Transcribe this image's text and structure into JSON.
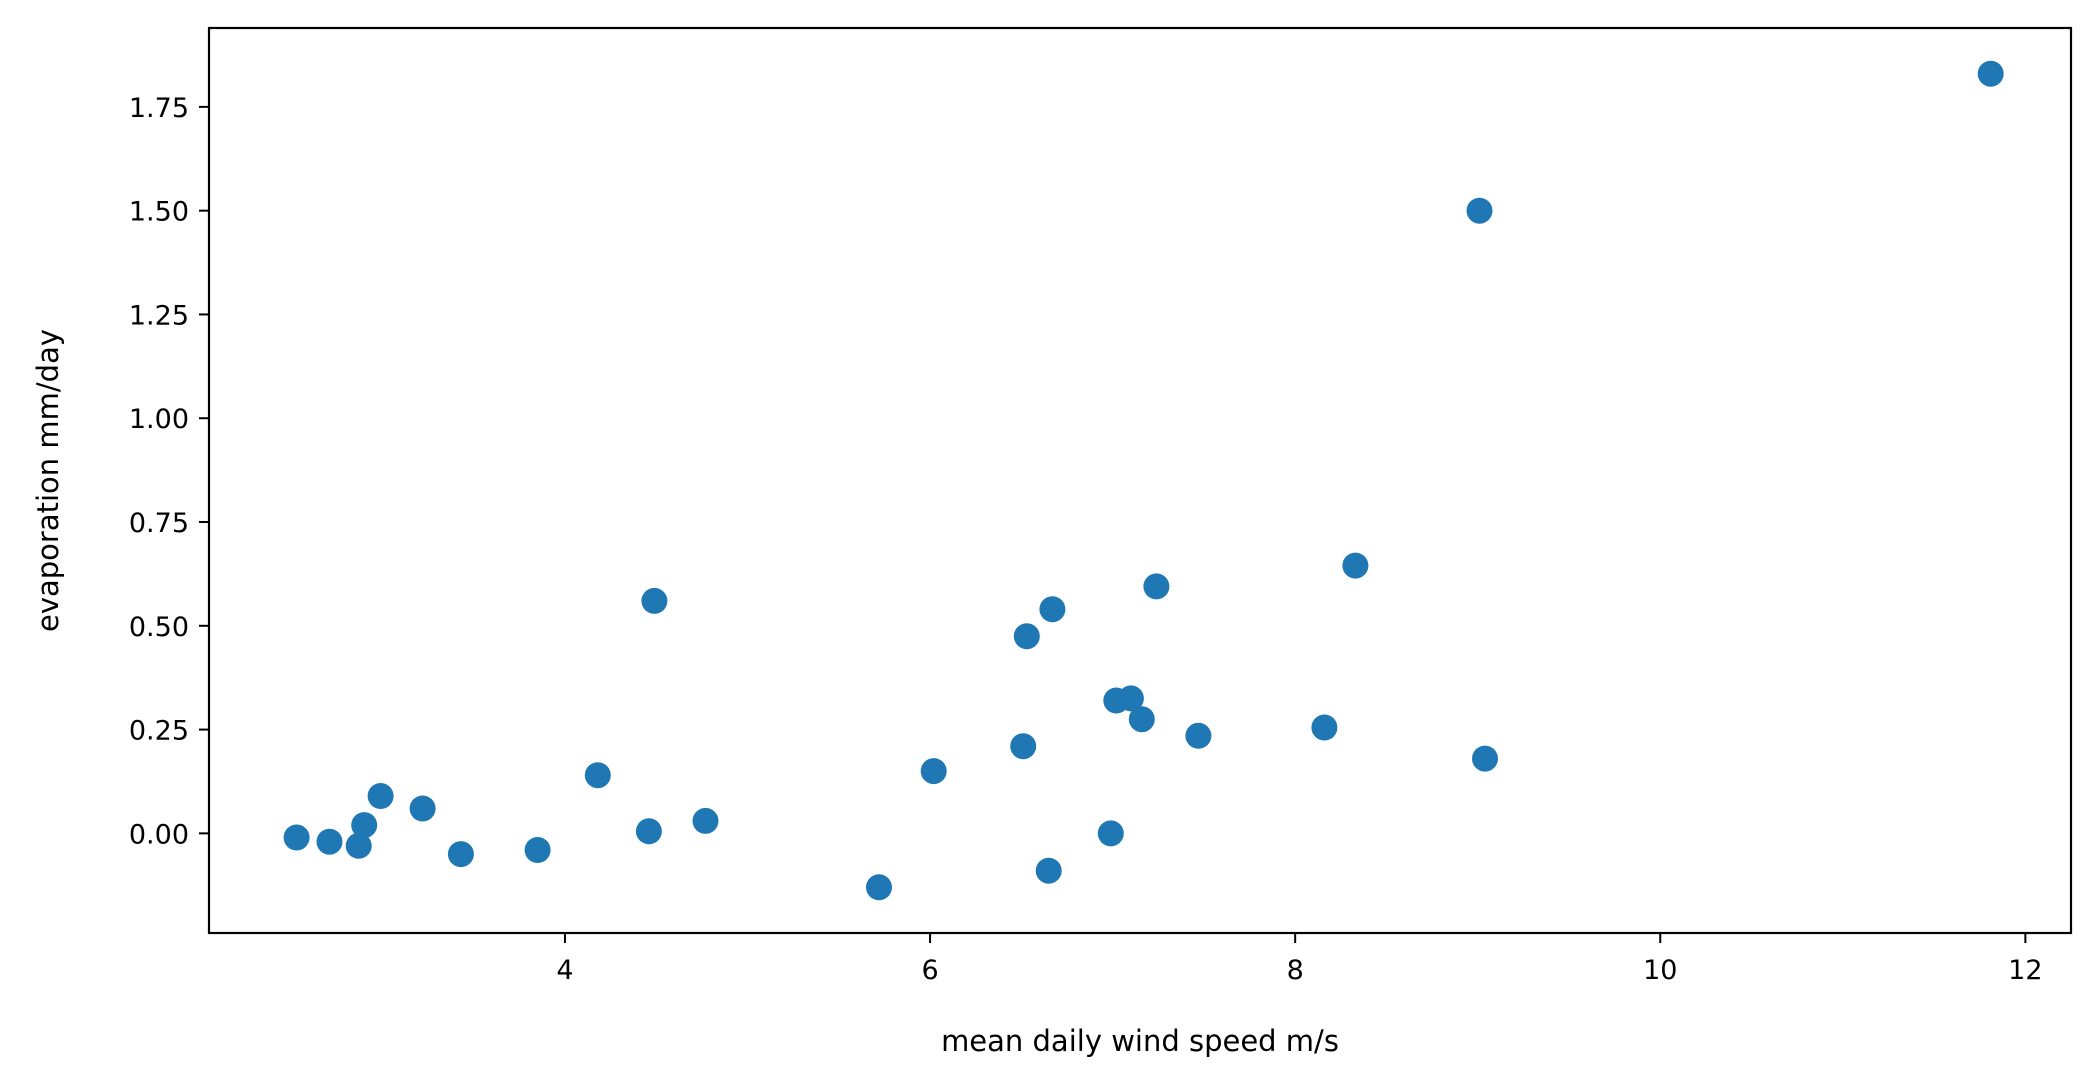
{
  "chart_data": {
    "type": "scatter",
    "xlabel": "mean daily wind speed m/s",
    "ylabel": "evaporation mm/day",
    "xlim": [
      2.05,
      12.25
    ],
    "ylim": [
      -0.24,
      1.94
    ],
    "x_ticks": [
      4,
      6,
      8,
      10,
      12
    ],
    "x_tick_labels": [
      "4",
      "6",
      "8",
      "10",
      "12"
    ],
    "y_ticks": [
      0.0,
      0.25,
      0.5,
      0.75,
      1.0,
      1.25,
      1.5,
      1.75
    ],
    "y_tick_labels": [
      "0.00",
      "0.25",
      "0.50",
      "0.75",
      "1.00",
      "1.25",
      "1.50",
      "1.75"
    ],
    "grid": false,
    "marker_color": "#1f77b4",
    "points": [
      {
        "x": 2.53,
        "y": -0.01
      },
      {
        "x": 2.71,
        "y": -0.02
      },
      {
        "x": 2.87,
        "y": -0.03
      },
      {
        "x": 2.9,
        "y": 0.02
      },
      {
        "x": 2.99,
        "y": 0.09
      },
      {
        "x": 3.22,
        "y": 0.06
      },
      {
        "x": 3.43,
        "y": -0.05
      },
      {
        "x": 3.85,
        "y": -0.04
      },
      {
        "x": 4.18,
        "y": 0.14
      },
      {
        "x": 4.46,
        "y": 0.005
      },
      {
        "x": 4.49,
        "y": 0.56
      },
      {
        "x": 4.77,
        "y": 0.03
      },
      {
        "x": 5.72,
        "y": -0.13
      },
      {
        "x": 6.02,
        "y": 0.15
      },
      {
        "x": 6.51,
        "y": 0.21
      },
      {
        "x": 6.53,
        "y": 0.475
      },
      {
        "x": 6.65,
        "y": -0.09
      },
      {
        "x": 6.67,
        "y": 0.54
      },
      {
        "x": 6.99,
        "y": 0.0
      },
      {
        "x": 7.02,
        "y": 0.32
      },
      {
        "x": 7.1,
        "y": 0.325
      },
      {
        "x": 7.16,
        "y": 0.275
      },
      {
        "x": 7.24,
        "y": 0.595
      },
      {
        "x": 7.47,
        "y": 0.235
      },
      {
        "x": 8.16,
        "y": 0.255
      },
      {
        "x": 8.33,
        "y": 0.645
      },
      {
        "x": 9.01,
        "y": 1.5
      },
      {
        "x": 9.04,
        "y": 0.18
      },
      {
        "x": 11.81,
        "y": 1.83
      }
    ]
  }
}
